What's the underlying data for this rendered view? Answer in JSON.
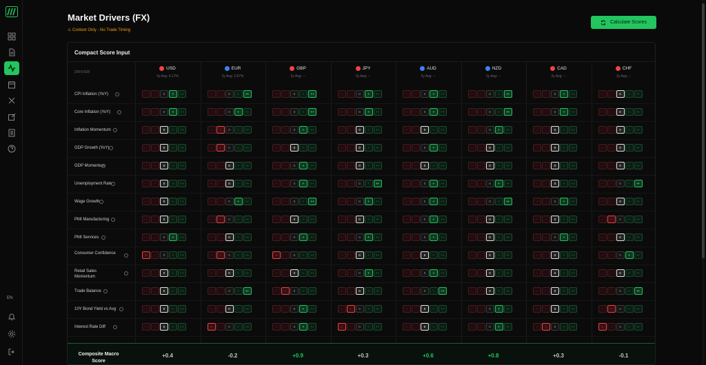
{
  "app": {
    "title": "Market Drivers (FX)",
    "subtitle": "⚠ Context Only - No Trade Timing",
    "calc_label": "Calculate Scores",
    "lang": "EN"
  },
  "card": {
    "title": "Compact Score Input",
    "driver_header": "DRIVER"
  },
  "colors": {
    "accent": "#22c55e",
    "negative": "#ef4444",
    "warning": "#f59e0b"
  },
  "score_labels": [
    "--",
    "-",
    "0",
    "+",
    "++"
  ],
  "currencies": [
    {
      "code": "USD",
      "avg": "2y Avg: 4.17%",
      "flag_color": "#ef4444"
    },
    {
      "code": "EUR",
      "avg": "2y Avg: 2.87%",
      "flag_color": "#3b82f6"
    },
    {
      "code": "GBP",
      "avg": "2y Avg: --",
      "flag_color": "#ef4444"
    },
    {
      "code": "JPY",
      "avg": "2y Avg: --",
      "flag_color": "#ef4444"
    },
    {
      "code": "AUD",
      "avg": "2y Avg: --",
      "flag_color": "#3b82f6"
    },
    {
      "code": "NZD",
      "avg": "2y Avg: --",
      "flag_color": "#3b82f6"
    },
    {
      "code": "CAD",
      "avg": "2y Avg: --",
      "flag_color": "#ef4444"
    },
    {
      "code": "CHF",
      "avg": "2y Avg: --",
      "flag_color": "#ef4444"
    }
  ],
  "drivers": [
    {
      "label": "CPI Inflation (YoY)",
      "scores": [
        3,
        4,
        4,
        3,
        3,
        4,
        3,
        2
      ]
    },
    {
      "label": "Core Inflation (YoY)",
      "scores": [
        3,
        3,
        4,
        3,
        3,
        4,
        3,
        2
      ]
    },
    {
      "label": "Inflation Momentum",
      "scores": [
        2,
        1,
        3,
        2,
        2,
        3,
        2,
        2
      ]
    },
    {
      "label": "GDP Growth (YoY)",
      "scores": [
        2,
        1,
        2,
        2,
        3,
        2,
        2,
        2
      ]
    },
    {
      "label": "GDP Momentum",
      "scores": [
        2,
        2,
        3,
        2,
        2,
        2,
        2,
        2
      ]
    },
    {
      "label": "Unemployment Rate",
      "scores": [
        2,
        2,
        3,
        4,
        3,
        3,
        2,
        4
      ]
    },
    {
      "label": "Wage Growth",
      "scores": [
        2,
        3,
        4,
        3,
        3,
        4,
        3,
        2
      ]
    },
    {
      "label": "PMI Manufacturing",
      "scores": [
        2,
        1,
        2,
        2,
        3,
        2,
        2,
        1
      ]
    },
    {
      "label": "PMI Services",
      "scores": [
        3,
        2,
        3,
        3,
        3,
        2,
        3,
        2
      ]
    },
    {
      "label": "Consumer Confidence",
      "scores": [
        0,
        1,
        0,
        2,
        2,
        2,
        2,
        3
      ]
    },
    {
      "label": "Retail Sales Momentum",
      "scores": [
        2,
        2,
        2,
        3,
        3,
        2,
        2,
        2
      ]
    },
    {
      "label": "Trade Balance",
      "scores": [
        2,
        4,
        1,
        2,
        4,
        2,
        2,
        4
      ]
    },
    {
      "label": "10Y Bond Yield vs Avg",
      "scores": [
        2,
        2,
        3,
        1,
        2,
        3,
        2,
        1
      ]
    },
    {
      "label": "Interest Rate Diff",
      "scores": [
        2,
        0,
        3,
        0,
        2,
        3,
        1,
        0
      ]
    }
  ],
  "composite": {
    "label": "Composite Macro Score",
    "values": [
      "+0.4",
      "-0.2",
      "+0.9",
      "+0.3",
      "+0.6",
      "+0.8",
      "+0.3",
      "-0.1"
    ]
  }
}
